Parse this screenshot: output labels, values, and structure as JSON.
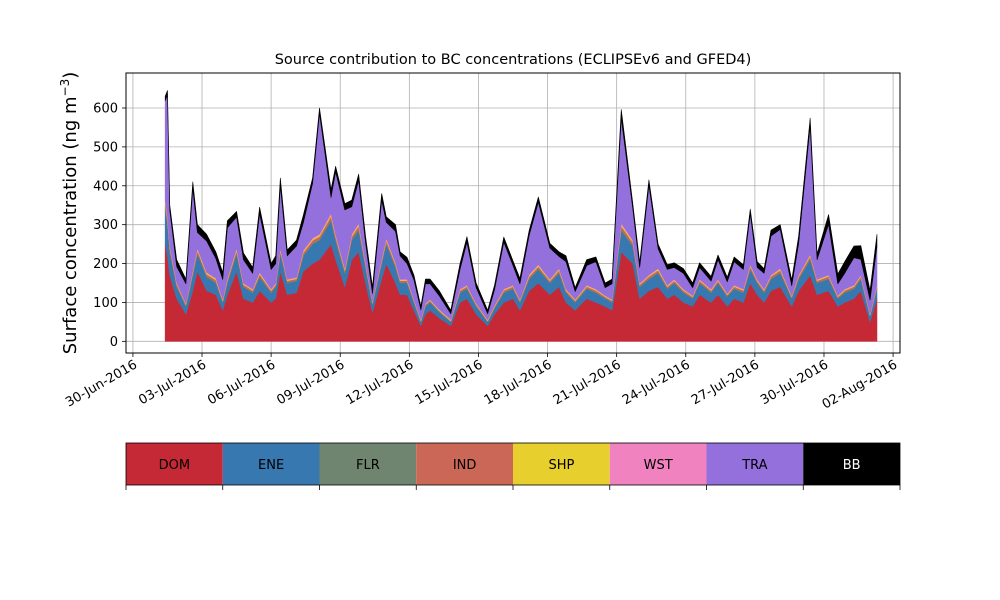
{
  "chart_data": {
    "type": "area",
    "stacked": true,
    "title": "Source contribution to BC concentrations (ECLIPSEv6 and GFED4)",
    "ylabel": "Surface concentration (ng m",
    "ylabel_unit_superscript": "−3",
    "ylabel_close": ")",
    "ylim": [
      -30,
      690
    ],
    "yticks": [
      0,
      100,
      200,
      300,
      400,
      500,
      600
    ],
    "xlim": [
      -0.3,
      33.3
    ],
    "xticks": [
      {
        "x": 0,
        "label": "30-Jun-2016"
      },
      {
        "x": 3,
        "label": "03-Jul-2016"
      },
      {
        "x": 6,
        "label": "06-Jul-2016"
      },
      {
        "x": 9,
        "label": "09-Jul-2016"
      },
      {
        "x": 12,
        "label": "12-Jul-2016"
      },
      {
        "x": 15,
        "label": "15-Jul-2016"
      },
      {
        "x": 18,
        "label": "18-Jul-2016"
      },
      {
        "x": 21,
        "label": "21-Jul-2016"
      },
      {
        "x": 24,
        "label": "24-Jul-2016"
      },
      {
        "x": 27,
        "label": "27-Jul-2016"
      },
      {
        "x": 30,
        "label": "30-Jul-2016"
      },
      {
        "x": 33,
        "label": "02-Aug-2016"
      }
    ],
    "grid": true,
    "legend_position": "bottom",
    "x": [
      1.4,
      1.5,
      1.6,
      1.9,
      2.3,
      2.6,
      2.8,
      3.2,
      3.6,
      3.9,
      4.1,
      4.5,
      4.8,
      5.2,
      5.5,
      6.0,
      6.2,
      6.4,
      6.7,
      7.1,
      7.4,
      7.8,
      8.1,
      8.6,
      8.8,
      9.2,
      9.5,
      9.8,
      10.1,
      10.4,
      10.8,
      11.0,
      11.4,
      11.6,
      11.9,
      12.2,
      12.5,
      12.7,
      12.9,
      13.3,
      13.8,
      14.2,
      14.5,
      14.9,
      15.4,
      15.7,
      16.1,
      16.5,
      16.8,
      17.2,
      17.6,
      18.1,
      18.5,
      18.8,
      19.2,
      19.7,
      20.1,
      20.5,
      20.8,
      21.2,
      21.7,
      22.0,
      22.4,
      22.8,
      23.2,
      23.5,
      23.9,
      24.3,
      24.6,
      25.1,
      25.4,
      25.8,
      26.1,
      26.5,
      26.8,
      27.1,
      27.4,
      27.7,
      28.1,
      28.6,
      28.9,
      29.4,
      29.7,
      30.2,
      30.6,
      30.9,
      31.3,
      31.6,
      32.0,
      32.3
    ],
    "series": [
      {
        "name": "DOM",
        "color": "#c62936",
        "values": [
          250,
          220,
          170,
          110,
          70,
          130,
          180,
          130,
          120,
          80,
          120,
          180,
          110,
          100,
          130,
          100,
          110,
          180,
          120,
          125,
          180,
          200,
          210,
          250,
          210,
          140,
          210,
          230,
          150,
          75,
          160,
          200,
          150,
          120,
          120,
          80,
          40,
          70,
          80,
          60,
          40,
          100,
          110,
          70,
          40,
          70,
          100,
          110,
          80,
          130,
          150,
          120,
          140,
          100,
          80,
          110,
          100,
          90,
          80,
          230,
          200,
          110,
          130,
          140,
          110,
          120,
          100,
          90,
          120,
          100,
          120,
          90,
          110,
          100,
          150,
          120,
          100,
          130,
          140,
          90,
          130,
          170,
          120,
          130,
          90,
          100,
          110,
          130,
          50,
          110
        ]
      },
      {
        "name": "ENE",
        "color": "#3878b0",
        "values": [
          90,
          80,
          60,
          30,
          20,
          40,
          45,
          35,
          30,
          20,
          30,
          45,
          30,
          25,
          35,
          25,
          30,
          45,
          30,
          30,
          40,
          50,
          50,
          60,
          50,
          35,
          50,
          55,
          40,
          20,
          40,
          50,
          40,
          30,
          30,
          20,
          10,
          20,
          20,
          15,
          10,
          25,
          25,
          20,
          10,
          15,
          25,
          25,
          20,
          30,
          35,
          30,
          35,
          25,
          20,
          25,
          25,
          20,
          20,
          55,
          45,
          30,
          30,
          35,
          25,
          30,
          25,
          20,
          30,
          25,
          30,
          25,
          25,
          25,
          35,
          30,
          25,
          30,
          35,
          20,
          30,
          40,
          30,
          30,
          20,
          25,
          25,
          30,
          15,
          25
        ]
      },
      {
        "name": "FLR",
        "color": "#6f8570",
        "values": [
          6,
          5,
          4,
          3,
          2,
          3,
          3,
          3,
          3,
          2,
          2,
          3,
          2,
          2,
          3,
          2,
          2,
          3,
          2,
          2,
          3,
          3,
          3,
          4,
          3,
          3,
          3,
          4,
          3,
          2,
          3,
          3,
          3,
          2,
          2,
          2,
          1,
          2,
          2,
          2,
          1,
          2,
          2,
          2,
          1,
          2,
          2,
          2,
          2,
          2,
          3,
          2,
          3,
          2,
          2,
          2,
          2,
          2,
          2,
          4,
          3,
          2,
          2,
          3,
          2,
          2,
          2,
          2,
          2,
          2,
          2,
          2,
          2,
          2,
          3,
          2,
          2,
          2,
          3,
          2,
          2,
          3,
          2,
          2,
          2,
          2,
          2,
          2,
          1,
          2
        ]
      },
      {
        "name": "IND",
        "color": "#cb6756",
        "values": [
          10,
          9,
          7,
          5,
          3,
          5,
          6,
          5,
          5,
          3,
          5,
          6,
          4,
          4,
          5,
          4,
          4,
          6,
          4,
          4,
          6,
          7,
          7,
          8,
          7,
          5,
          7,
          8,
          5,
          3,
          5,
          7,
          5,
          4,
          4,
          3,
          2,
          3,
          3,
          2,
          2,
          4,
          4,
          3,
          2,
          3,
          4,
          4,
          3,
          5,
          5,
          4,
          5,
          4,
          3,
          4,
          4,
          3,
          3,
          8,
          7,
          4,
          5,
          5,
          4,
          4,
          4,
          3,
          4,
          4,
          4,
          3,
          4,
          4,
          5,
          4,
          4,
          5,
          5,
          3,
          5,
          6,
          4,
          5,
          3,
          4,
          4,
          5,
          2,
          4
        ]
      },
      {
        "name": "SHP",
        "color": "#e7cf2e",
        "values": [
          4,
          4,
          3,
          2,
          2,
          3,
          3,
          3,
          3,
          2,
          3,
          3,
          2,
          2,
          3,
          2,
          2,
          3,
          2,
          2,
          3,
          3,
          3,
          4,
          3,
          3,
          3,
          4,
          3,
          2,
          3,
          3,
          3,
          2,
          2,
          2,
          2,
          2,
          2,
          2,
          2,
          2,
          2,
          2,
          2,
          2,
          2,
          2,
          2,
          3,
          3,
          2,
          3,
          2,
          2,
          2,
          2,
          2,
          2,
          4,
          3,
          2,
          2,
          3,
          2,
          2,
          2,
          2,
          2,
          2,
          2,
          2,
          2,
          2,
          3,
          2,
          2,
          2,
          3,
          2,
          2,
          3,
          2,
          2,
          2,
          2,
          2,
          2,
          2,
          2
        ]
      },
      {
        "name": "WST",
        "color": "#f083bf",
        "values": [
          4,
          4,
          3,
          2,
          1,
          2,
          3,
          2,
          2,
          2,
          2,
          3,
          2,
          2,
          2,
          2,
          2,
          3,
          2,
          2,
          3,
          3,
          3,
          4,
          3,
          2,
          3,
          3,
          2,
          1,
          2,
          3,
          2,
          2,
          2,
          1,
          1,
          1,
          1,
          1,
          1,
          2,
          2,
          1,
          1,
          1,
          2,
          2,
          1,
          2,
          2,
          2,
          2,
          2,
          1,
          2,
          2,
          1,
          1,
          3,
          3,
          2,
          2,
          2,
          2,
          2,
          2,
          1,
          2,
          2,
          2,
          1,
          2,
          2,
          2,
          2,
          2,
          2,
          2,
          1,
          2,
          2,
          2,
          2,
          1,
          2,
          2,
          2,
          1,
          2
        ]
      },
      {
        "name": "TRA",
        "color": "#9370dc",
        "values": [
          255,
          310,
          90,
          40,
          50,
          210,
          40,
          80,
          50,
          50,
          130,
          80,
          60,
          40,
          150,
          50,
          50,
          160,
          60,
          80,
          70,
          140,
          310,
          40,
          160,
          150,
          70,
          110,
          50,
          20,
          150,
          40,
          80,
          60,
          40,
          50,
          25,
          50,
          40,
          35,
          15,
          50,
          110,
          40,
          15,
          40,
          120,
          50,
          40,
          100,
          160,
          80,
          30,
          70,
          20,
          50,
          70,
          20,
          40,
          270,
          80,
          40,
          230,
          50,
          40,
          30,
          40,
          20,
          30,
          20,
          50,
          30,
          60,
          50,
          130,
          30,
          40,
          100,
          100,
          25,
          80,
          330,
          50,
          130,
          30,
          40,
          70,
          40,
          35,
          100
        ]
      },
      {
        "name": "BB",
        "color": "#000000",
        "values": [
          11,
          13,
          13,
          18,
          12,
          17,
          20,
          17,
          17,
          18,
          18,
          14,
          17,
          15,
          17,
          15,
          20,
          20,
          15,
          15,
          20,
          14,
          14,
          20,
          14,
          16,
          17,
          16,
          17,
          17,
          17,
          14,
          17,
          10,
          16,
          12,
          9,
          12,
          12,
          13,
          9,
          15,
          14,
          12,
          9,
          12,
          13,
          12,
          14,
          13,
          13,
          12,
          12,
          15,
          10,
          15,
          12,
          12,
          12,
          22,
          14,
          13,
          14,
          12,
          12,
          12,
          12,
          12,
          12,
          12,
          12,
          12,
          12,
          12,
          12,
          15,
          12,
          15,
          12,
          15,
          20,
          20,
          15,
          25,
          25,
          30,
          30,
          35,
          25,
          30
        ]
      }
    ]
  }
}
